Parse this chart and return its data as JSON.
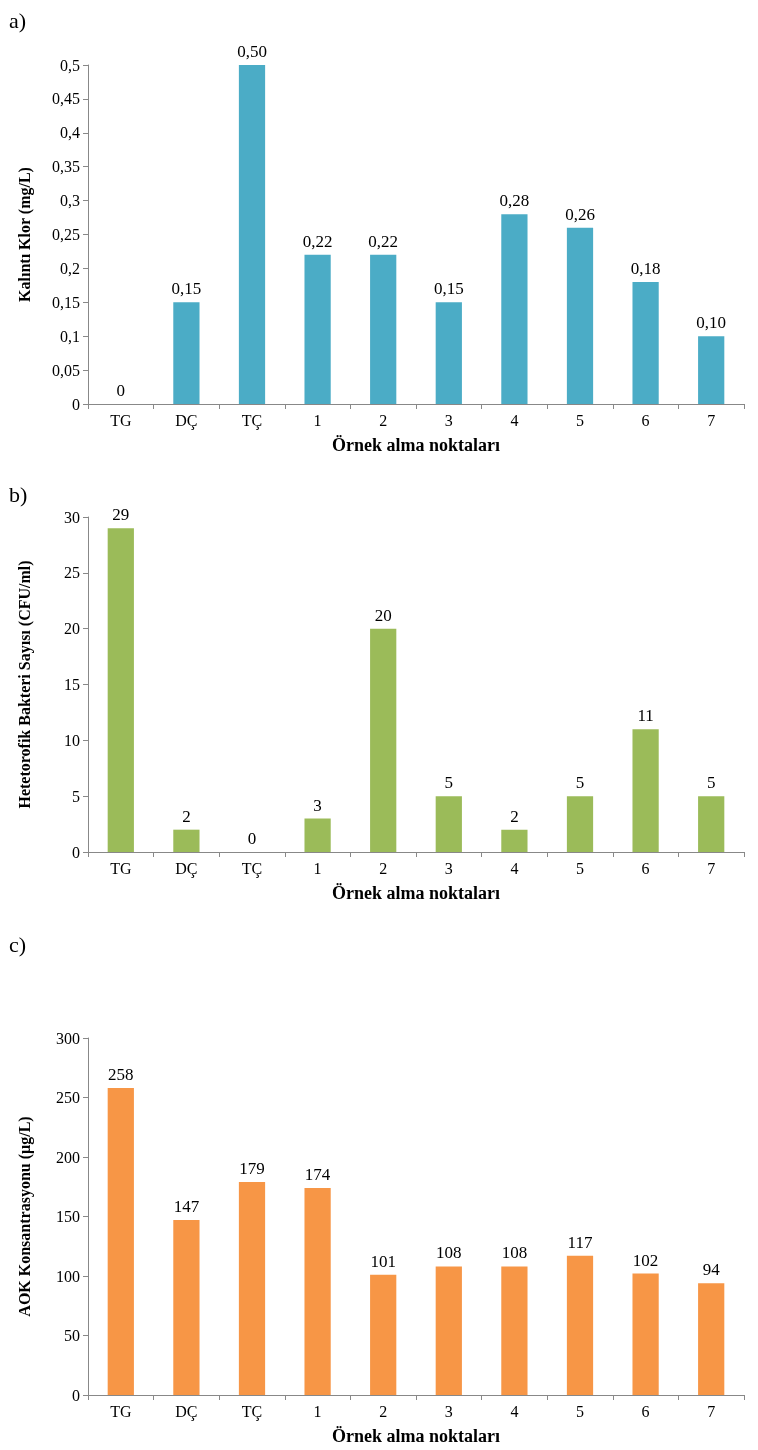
{
  "chart_data": [
    {
      "type": "bar",
      "title": "a)",
      "xlabel": "Örnek alma noktaları",
      "ylabel": "Kalıntı Klor (mg/L)",
      "categories": [
        "TG",
        "DÇ",
        "TÇ",
        "1",
        "2",
        "3",
        "4",
        "5",
        "6",
        "7"
      ],
      "color": "#4bacc6",
      "values": [
        0,
        0.15,
        0.5,
        0.22,
        0.22,
        0.15,
        0.28,
        0.26,
        0.18,
        0.1
      ],
      "value_labels": [
        "0",
        "0,15",
        "0,50",
        "0,22",
        "0,22",
        "0,15",
        "0,28",
        "0,26",
        "0,18",
        "0,10"
      ],
      "ylim": [
        0,
        0.5
      ],
      "yticks": [
        0,
        {
          "value": 0.05,
          "label": "0,05"
        },
        {
          "value": 0.1,
          "label": "0,1"
        },
        {
          "value": 0.15,
          "label": "0,15"
        },
        {
          "value": 0.2,
          "label": "0,2"
        },
        {
          "value": 0.25,
          "label": "0,25"
        },
        {
          "value": 0.3,
          "label": "0,3"
        },
        {
          "value": 0.35,
          "label": "0,35"
        },
        {
          "value": 0.4,
          "label": "0,4"
        },
        {
          "value": 0.45,
          "label": "0,45"
        },
        {
          "value": 0.5,
          "label": "0,5"
        }
      ],
      "grid": false
    },
    {
      "type": "bar",
      "title": "b)",
      "xlabel": "Örnek alma noktaları",
      "ylabel": "Hetetorofik Bakteri Sayısı (CFU/ml)",
      "categories": [
        "TG",
        "DÇ",
        "TÇ",
        "1",
        "2",
        "3",
        "4",
        "5",
        "6",
        "7"
      ],
      "color": "#9bbb59",
      "values": [
        29,
        2,
        0,
        3,
        20,
        5,
        2,
        5,
        11,
        5
      ],
      "data_labels": true,
      "ylim": [
        0,
        30
      ],
      "yticks": [
        0,
        5,
        10,
        15,
        20,
        25,
        30
      ],
      "grid": false
    },
    {
      "type": "bar",
      "title": "c)",
      "xlabel": "Örnek alma noktaları",
      "ylabel": "AOK Konsantrasyonu (µg/L)",
      "categories": [
        "TG",
        "DÇ",
        "TÇ",
        "1",
        "2",
        "3",
        "4",
        "5",
        "6",
        "7"
      ],
      "color": "#f79646",
      "values": [
        258,
        147,
        179,
        174,
        101,
        108,
        108,
        117,
        102,
        94
      ],
      "data_labels": true,
      "ylim": [
        0,
        300
      ],
      "yticks": [
        0,
        50,
        100,
        150,
        200,
        250,
        300
      ],
      "grid": false
    }
  ]
}
